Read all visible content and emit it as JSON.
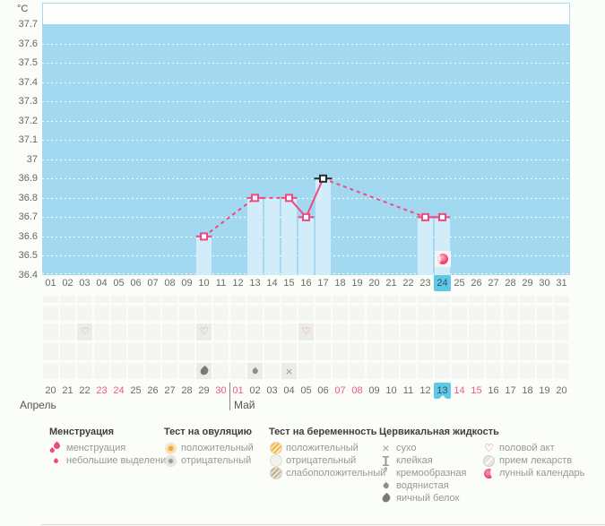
{
  "months": {
    "april": "Апрель",
    "may": "Май"
  },
  "colors": {
    "chart_bg": "#a2d9f0",
    "bar": "#d2ecf9",
    "accent_pink": "#ef4a80",
    "marker_black": "#2b2b2b",
    "highlight_blue": "#5ec8e9",
    "weekend_text": "#f5538a",
    "gridline": "#ffffff"
  },
  "chart_data": {
    "type": "line",
    "title": "",
    "ylabel": "°C",
    "ylim": [
      36.4,
      37.7
    ],
    "grid": true,
    "y_ticks": [
      "37.7",
      "37.6",
      "37.5",
      "37.4",
      "37.3",
      "37.2",
      "37.1",
      "37",
      "36.9",
      "36.8",
      "36.7",
      "36.6",
      "36.5",
      "36.4"
    ],
    "cycle_day_labels": [
      "01",
      "02",
      "03",
      "04",
      "05",
      "06",
      "07",
      "08",
      "09",
      "10",
      "11",
      "12",
      "13",
      "14",
      "15",
      "16",
      "17",
      "18",
      "19",
      "20",
      "21",
      "22",
      "23",
      "24",
      "25",
      "26",
      "27",
      "28",
      "29",
      "30",
      "31"
    ],
    "calendar_day_labels": [
      "20",
      "21",
      "22",
      "23",
      "24",
      "25",
      "26",
      "27",
      "28",
      "29",
      "30",
      "01",
      "02",
      "03",
      "04",
      "05",
      "06",
      "07",
      "08",
      "09",
      "10",
      "11",
      "12",
      "13",
      "14",
      "15",
      "16",
      "17",
      "18",
      "19",
      "20"
    ],
    "weekend_calendar_indices": [
      3,
      4,
      10,
      11,
      17,
      18,
      24,
      25
    ],
    "month_divider_after_index": 10,
    "selected_column_index": 23,
    "selected_cycle_day": "24",
    "selected_calendar_day": "13",
    "points": [
      {
        "day": 10,
        "temp": 36.6,
        "marker": "pink"
      },
      {
        "day": 13,
        "temp": 36.8,
        "marker": "pink"
      },
      {
        "day": 15,
        "temp": 36.8,
        "marker": "pink"
      },
      {
        "day": 16,
        "temp": 36.7,
        "marker": "pink"
      },
      {
        "day": 17,
        "temp": 36.9,
        "marker": "black"
      },
      {
        "day": 23,
        "temp": 36.7,
        "marker": "pink"
      },
      {
        "day": 24,
        "temp": 36.7,
        "marker": "pink"
      }
    ],
    "bars": [
      {
        "day": 10,
        "temp": 36.6
      },
      {
        "day": 13,
        "temp": 36.8
      },
      {
        "day": 14,
        "temp": 36.8
      },
      {
        "day": 15,
        "temp": 36.8
      },
      {
        "day": 16,
        "temp": 36.7
      },
      {
        "day": 17,
        "temp": 36.9
      },
      {
        "day": 23,
        "temp": 36.7
      },
      {
        "day": 24,
        "temp": 36.7
      }
    ],
    "segments": [
      {
        "from": 10,
        "to": 13,
        "style": "dashed"
      },
      {
        "from": 13,
        "to": 15,
        "style": "dashed"
      },
      {
        "from": 15,
        "to": 16,
        "style": "solid"
      },
      {
        "from": 16,
        "to": 17,
        "style": "solid"
      },
      {
        "from": 17,
        "to": 23,
        "style": "dashed"
      },
      {
        "from": 23,
        "to": 24,
        "style": "solid"
      }
    ],
    "moon_event_day": 24,
    "events": {
      "intercourse_days": [
        3,
        10,
        16
      ],
      "cervical_fluid": [
        {
          "day": 10,
          "type": "яичный белок",
          "icon": "drop-big-gray"
        },
        {
          "day": 13,
          "type": "водянистая",
          "icon": "drop-small-gray"
        },
        {
          "day": 15,
          "type": "сухо",
          "icon": "x-gray"
        }
      ]
    }
  },
  "legend": {
    "groups": [
      {
        "title": "Менструация",
        "items": [
          {
            "icon": "drops-pink",
            "label": "менструация"
          },
          {
            "icon": "drop-small-pink",
            "label": "небольшие выделения"
          }
        ]
      },
      {
        "title": "Тест на овуляцию",
        "items": [
          {
            "icon": "circle-orange",
            "label": "положительный"
          },
          {
            "icon": "circle-gray",
            "label": "отрицательный"
          }
        ]
      },
      {
        "title": "Тест на беременность",
        "items": [
          {
            "icon": "test-positive",
            "label": "положительный"
          },
          {
            "icon": "test-negative",
            "label": "отрицательный"
          },
          {
            "icon": "test-weak",
            "label": "слабоположительный"
          }
        ]
      },
      {
        "title": "Цервикальная жидкость",
        "items": [
          {
            "icon": "x-gray",
            "label": "сухо"
          },
          {
            "icon": "ibeam-gray",
            "label": "клейкая"
          },
          {
            "icon": "comma-gray",
            "label": "кремообразная"
          },
          {
            "icon": "drop-small-gray",
            "label": "водянистая"
          },
          {
            "icon": "drop-big-gray",
            "label": "яичный белок"
          }
        ]
      },
      {
        "title": "",
        "items": [
          {
            "icon": "heart-pink",
            "label": "половой акт"
          },
          {
            "icon": "pill-gray",
            "label": "прием лекарств"
          },
          {
            "icon": "moon-pink",
            "label": "лунный календарь"
          }
        ]
      }
    ]
  }
}
